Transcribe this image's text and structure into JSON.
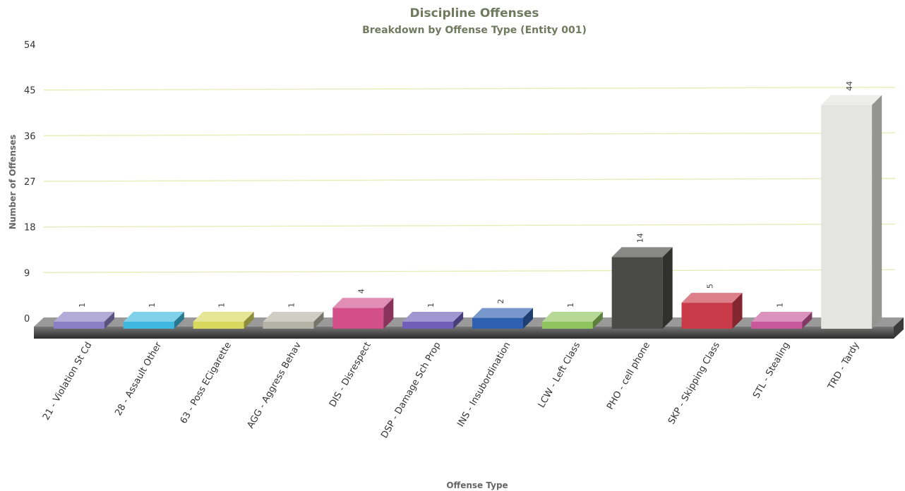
{
  "chart_data": {
    "type": "bar",
    "title": "Discipline Offenses",
    "subtitle": "Breakdown by Offense Type (Entity 001)",
    "xlabel": "Offense Type",
    "ylabel": "Number of Offenses",
    "ylim": [
      0,
      54
    ],
    "yticks": [
      "0",
      "9",
      "18",
      "27",
      "36",
      "45",
      "54"
    ],
    "grid": true,
    "categories": [
      "21 - Violation St Cd",
      "28 - Assault Other",
      "63 - Poss ECigarette",
      "AGG - Aggress Behav",
      "DIS - Disrespect",
      "DSP - Damage Sch Prop",
      "INS - Insubordination",
      "LCW - Left Class",
      "PHO - cell phone",
      "SKP - Skipping Class",
      "STL - Stealing",
      "TRD - Tardy"
    ],
    "values": [
      1,
      1,
      1,
      1,
      4,
      1,
      2,
      1,
      14,
      5,
      1,
      44
    ],
    "data_labels": [
      "1",
      "1",
      "1",
      "1",
      "4",
      "1",
      "2",
      "1",
      "14",
      "5",
      "1",
      "44"
    ],
    "colors": [
      "#8a7fc4",
      "#3fb8e0",
      "#d8d85e",
      "#b4b4a6",
      "#d24f8a",
      "#6f5fb8",
      "#2f5fb0",
      "#8fc45f",
      "#4a4a48",
      "#c93a48",
      "#c8589a",
      "#e4e4e0"
    ]
  }
}
